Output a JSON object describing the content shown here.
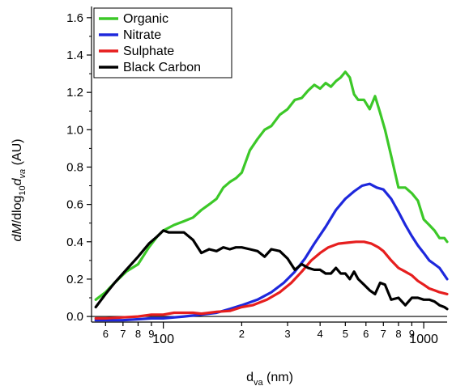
{
  "chart_data": {
    "type": "line",
    "x_scale": "log",
    "xlim": [
      53,
      1230
    ],
    "ylim": [
      -0.03,
      1.66
    ],
    "grid": false,
    "legend_position": "top-left",
    "x_ticks": [
      {
        "v": 60,
        "label": "6"
      },
      {
        "v": 70,
        "label": "7"
      },
      {
        "v": 80,
        "label": "8"
      },
      {
        "v": 90,
        "label": "9"
      },
      {
        "v": 100,
        "label": "100"
      },
      {
        "v": 200,
        "label": "2"
      },
      {
        "v": 300,
        "label": "3"
      },
      {
        "v": 400,
        "label": "4"
      },
      {
        "v": 500,
        "label": "5"
      },
      {
        "v": 600,
        "label": "6"
      },
      {
        "v": 700,
        "label": "7"
      },
      {
        "v": 800,
        "label": "8"
      },
      {
        "v": 900,
        "label": "9"
      },
      {
        "v": 1000,
        "label": "1000"
      }
    ],
    "y_ticks": [
      {
        "v": 0.0,
        "label": "0.0"
      },
      {
        "v": 0.2,
        "label": "0.2"
      },
      {
        "v": 0.4,
        "label": "0.4"
      },
      {
        "v": 0.6,
        "label": "0.6"
      },
      {
        "v": 0.8,
        "label": "0.8"
      },
      {
        "v": 1.0,
        "label": "1.0"
      },
      {
        "v": 1.2,
        "label": "1.2"
      },
      {
        "v": 1.4,
        "label": "1.4"
      },
      {
        "v": 1.6,
        "label": "1.6"
      }
    ],
    "series": [
      {
        "name": "Organic",
        "color": "#3cc828",
        "x": [
          55,
          60,
          65,
          72,
          80,
          88,
          95,
          100,
          110,
          120,
          130,
          140,
          150,
          160,
          170,
          180,
          190,
          200,
          215,
          230,
          245,
          260,
          280,
          300,
          320,
          340,
          360,
          380,
          400,
          420,
          440,
          460,
          480,
          500,
          520,
          540,
          560,
          590,
          620,
          650,
          680,
          710,
          750,
          800,
          850,
          900,
          950,
          1000,
          1050,
          1100,
          1150,
          1200,
          1230
        ],
        "y": [
          0.09,
          0.13,
          0.18,
          0.24,
          0.28,
          0.37,
          0.43,
          0.46,
          0.49,
          0.51,
          0.53,
          0.57,
          0.6,
          0.63,
          0.69,
          0.72,
          0.74,
          0.77,
          0.89,
          0.95,
          1.0,
          1.02,
          1.08,
          1.11,
          1.16,
          1.17,
          1.21,
          1.24,
          1.22,
          1.25,
          1.23,
          1.26,
          1.28,
          1.31,
          1.28,
          1.19,
          1.16,
          1.16,
          1.11,
          1.18,
          1.09,
          1.0,
          0.86,
          0.69,
          0.69,
          0.66,
          0.62,
          0.52,
          0.49,
          0.46,
          0.42,
          0.42,
          0.4
        ]
      },
      {
        "name": "Nitrate",
        "color": "#1e28dc",
        "x": [
          55,
          60,
          70,
          80,
          90,
          100,
          120,
          140,
          160,
          180,
          200,
          230,
          260,
          290,
          320,
          350,
          380,
          420,
          460,
          500,
          540,
          580,
          620,
          660,
          700,
          750,
          800,
          850,
          900,
          950,
          1000,
          1050,
          1100,
          1150,
          1230
        ],
        "y": [
          -0.02,
          -0.02,
          -0.02,
          -0.015,
          -0.01,
          -0.01,
          0.0,
          0.01,
          0.02,
          0.04,
          0.06,
          0.09,
          0.13,
          0.18,
          0.24,
          0.31,
          0.39,
          0.48,
          0.57,
          0.63,
          0.67,
          0.7,
          0.71,
          0.69,
          0.68,
          0.63,
          0.56,
          0.49,
          0.43,
          0.38,
          0.34,
          0.3,
          0.28,
          0.26,
          0.2
        ]
      },
      {
        "name": "Sulphate",
        "color": "#e61e1e",
        "x": [
          55,
          60,
          70,
          80,
          90,
          100,
          110,
          120,
          130,
          140,
          150,
          160,
          180,
          200,
          220,
          250,
          280,
          310,
          340,
          370,
          400,
          430,
          470,
          510,
          550,
          590,
          630,
          670,
          700,
          750,
          800,
          850,
          900,
          950,
          1000,
          1050,
          1100,
          1150,
          1230
        ],
        "y": [
          -0.01,
          -0.01,
          -0.005,
          0.0,
          0.01,
          0.01,
          0.02,
          0.02,
          0.02,
          0.015,
          0.02,
          0.025,
          0.03,
          0.05,
          0.06,
          0.09,
          0.13,
          0.18,
          0.24,
          0.3,
          0.34,
          0.37,
          0.39,
          0.395,
          0.4,
          0.4,
          0.39,
          0.37,
          0.35,
          0.3,
          0.26,
          0.24,
          0.22,
          0.19,
          0.17,
          0.15,
          0.14,
          0.13,
          0.12
        ]
      },
      {
        "name": "Black Carbon",
        "color": "#000000",
        "x": [
          55,
          60,
          65,
          72,
          80,
          88,
          95,
          100,
          105,
          110,
          120,
          130,
          140,
          150,
          160,
          170,
          180,
          190,
          200,
          215,
          230,
          245,
          260,
          280,
          300,
          320,
          340,
          360,
          380,
          400,
          420,
          440,
          460,
          480,
          500,
          520,
          540,
          560,
          590,
          620,
          650,
          680,
          710,
          750,
          800,
          850,
          900,
          950,
          1000,
          1050,
          1100,
          1150,
          1200,
          1230
        ],
        "y": [
          0.05,
          0.12,
          0.18,
          0.25,
          0.32,
          0.39,
          0.43,
          0.46,
          0.45,
          0.45,
          0.45,
          0.41,
          0.34,
          0.36,
          0.35,
          0.37,
          0.36,
          0.37,
          0.37,
          0.36,
          0.35,
          0.32,
          0.36,
          0.35,
          0.31,
          0.25,
          0.28,
          0.26,
          0.25,
          0.25,
          0.23,
          0.23,
          0.26,
          0.23,
          0.23,
          0.2,
          0.24,
          0.2,
          0.17,
          0.14,
          0.12,
          0.18,
          0.17,
          0.09,
          0.1,
          0.06,
          0.1,
          0.1,
          0.09,
          0.09,
          0.08,
          0.06,
          0.05,
          0.04
        ]
      }
    ]
  }
}
